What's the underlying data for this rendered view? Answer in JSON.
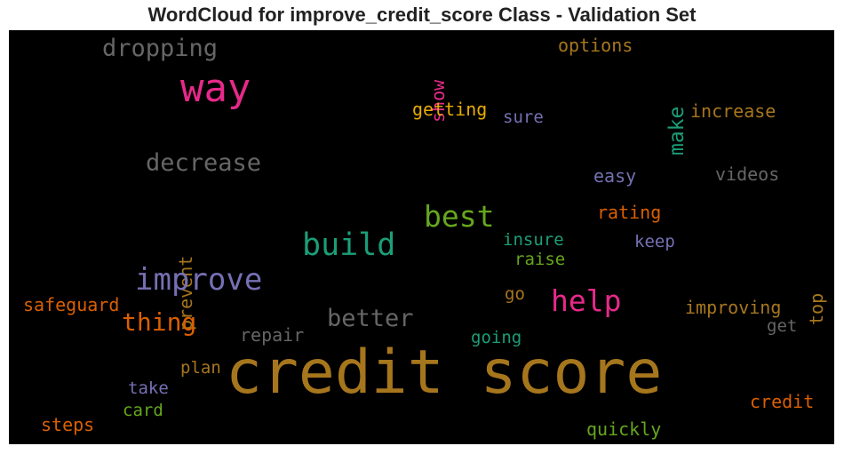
{
  "chart_data": {
    "type": "wordcloud",
    "title": "WordCloud for improve_credit_score Class - Validation Set",
    "background": "#000000",
    "words": [
      {
        "text": "credit score",
        "color": "#a6761d",
        "orientation": "horizontal"
      },
      {
        "text": "way",
        "color": "#e7298a",
        "orientation": "horizontal"
      },
      {
        "text": "dropping",
        "color": "#666666",
        "orientation": "horizontal"
      },
      {
        "text": "show",
        "color": "#e7298a",
        "orientation": "vertical"
      },
      {
        "text": "options",
        "color": "#a6761d",
        "orientation": "horizontal"
      },
      {
        "text": "make",
        "color": "#1b9e77",
        "orientation": "vertical"
      },
      {
        "text": "getting",
        "color": "#e6ab02",
        "orientation": "horizontal"
      },
      {
        "text": "sure",
        "color": "#7570b3",
        "orientation": "horizontal"
      },
      {
        "text": "increase",
        "color": "#a6761d",
        "orientation": "horizontal"
      },
      {
        "text": "decrease",
        "color": "#666666",
        "orientation": "horizontal"
      },
      {
        "text": "prevent",
        "color": "#a6761d",
        "orientation": "vertical"
      },
      {
        "text": "easy",
        "color": "#7570b3",
        "orientation": "horizontal"
      },
      {
        "text": "videos",
        "color": "#666666",
        "orientation": "horizontal"
      },
      {
        "text": "best",
        "color": "#66a61e",
        "orientation": "horizontal"
      },
      {
        "text": "rating",
        "color": "#d95f02",
        "orientation": "horizontal"
      },
      {
        "text": "build",
        "color": "#1b9e77",
        "orientation": "horizontal"
      },
      {
        "text": "insure",
        "color": "#1b9e77",
        "orientation": "horizontal"
      },
      {
        "text": "keep",
        "color": "#7570b3",
        "orientation": "horizontal"
      },
      {
        "text": "raise",
        "color": "#66a61e",
        "orientation": "horizontal"
      },
      {
        "text": "improve",
        "color": "#7570b3",
        "orientation": "horizontal"
      },
      {
        "text": "top",
        "color": "#a6761d",
        "orientation": "vertical"
      },
      {
        "text": "help",
        "color": "#e7298a",
        "orientation": "horizontal"
      },
      {
        "text": "go",
        "color": "#a6761d",
        "orientation": "horizontal"
      },
      {
        "text": "safeguard",
        "color": "#d95f02",
        "orientation": "horizontal"
      },
      {
        "text": "thing",
        "color": "#d95f02",
        "orientation": "horizontal"
      },
      {
        "text": "better",
        "color": "#666666",
        "orientation": "horizontal"
      },
      {
        "text": "improving",
        "color": "#a6761d",
        "orientation": "horizontal"
      },
      {
        "text": "get",
        "color": "#666666",
        "orientation": "horizontal"
      },
      {
        "text": "repair",
        "color": "#666666",
        "orientation": "horizontal"
      },
      {
        "text": "going",
        "color": "#1b9e77",
        "orientation": "horizontal"
      },
      {
        "text": "plan",
        "color": "#a6761d",
        "orientation": "horizontal"
      },
      {
        "text": "take",
        "color": "#7570b3",
        "orientation": "horizontal"
      },
      {
        "text": "credit",
        "color": "#d95f02",
        "orientation": "horizontal"
      },
      {
        "text": "card",
        "color": "#66a61e",
        "orientation": "horizontal"
      },
      {
        "text": "steps",
        "color": "#d95f02",
        "orientation": "horizontal"
      },
      {
        "text": "quickly",
        "color": "#66a61e",
        "orientation": "horizontal"
      }
    ]
  }
}
